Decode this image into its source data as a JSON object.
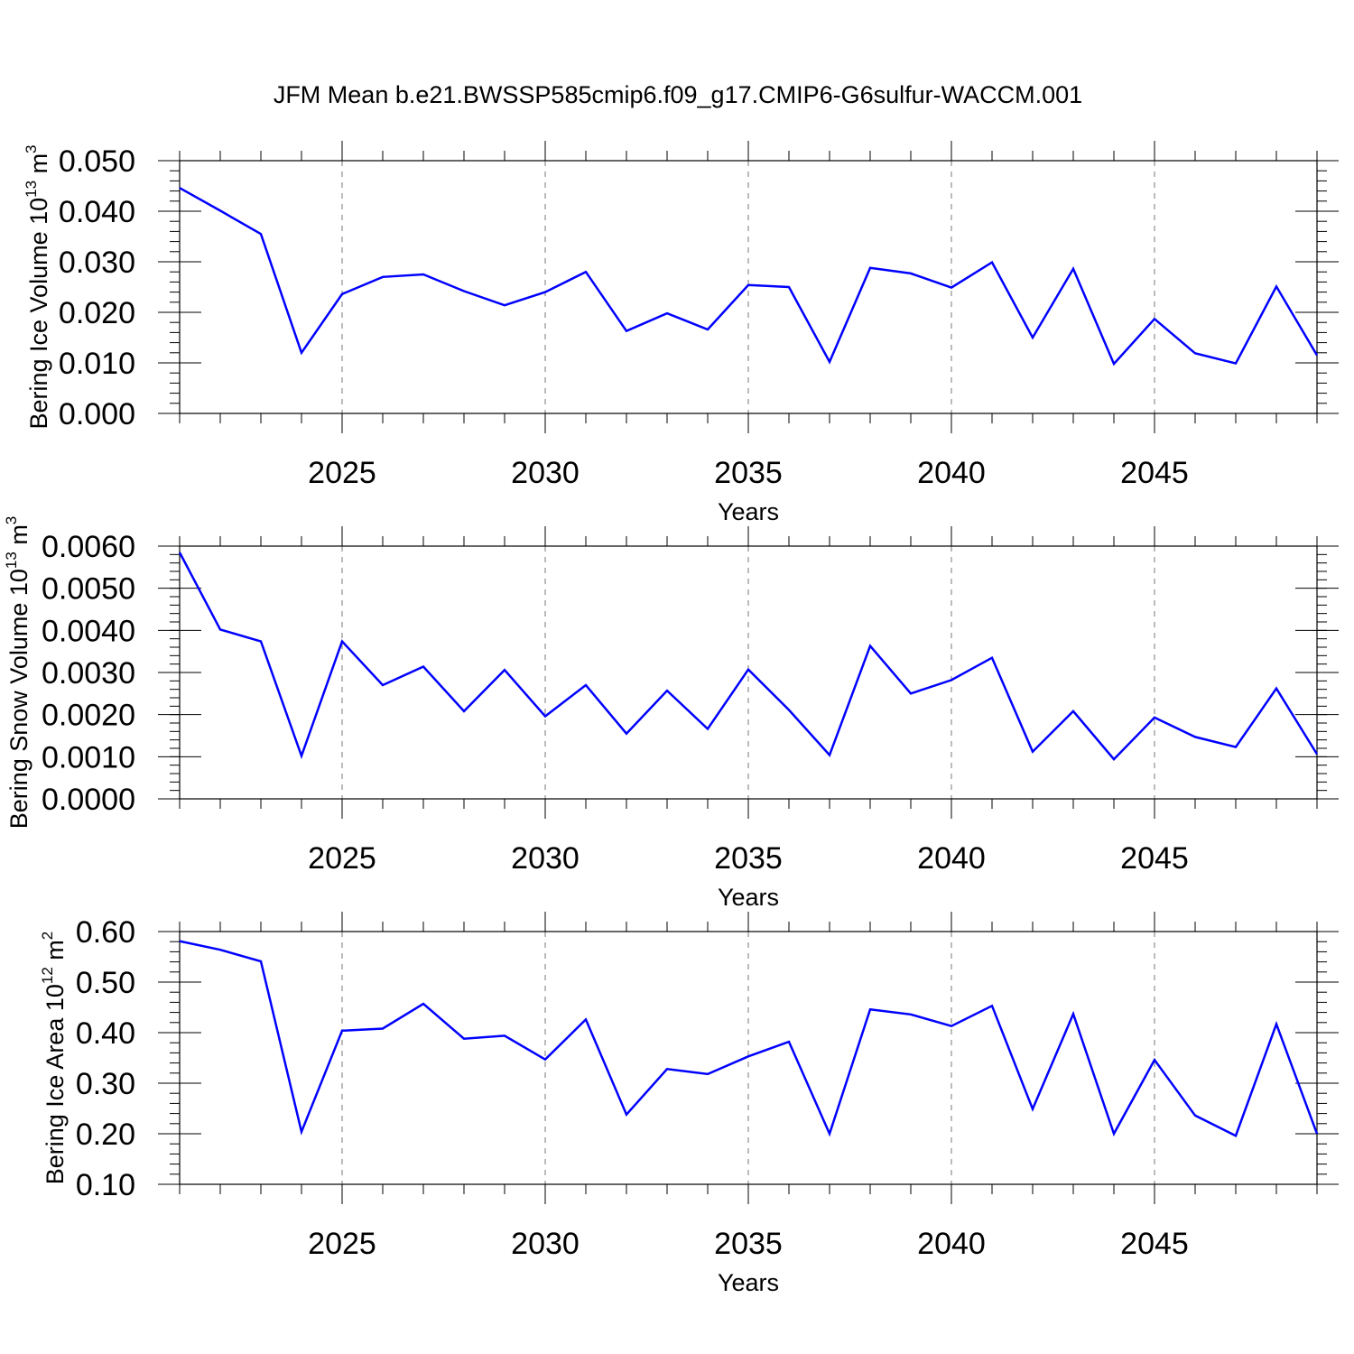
{
  "title": "JFM Mean b.e21.BWSSP585cmip6.f09_g17.CMIP6-G6sulfur-WACCM.001",
  "colors": {
    "line": "#0000ff",
    "axis": "#000000",
    "grid": "#777777",
    "background": "#ffffff"
  },
  "chart_data": [
    {
      "type": "line",
      "title": "JFM Mean b.e21.BWSSP585cmip6.f09_g17.CMIP6-G6sulfur-WACCM.001",
      "xlabel": "Years",
      "ylabel": {
        "text": "Bering Ice Volume 10",
        "sup": "13",
        "unit": " m",
        "unit_sup": "3"
      },
      "xlim": [
        2021,
        2049
      ],
      "ylim": [
        0.0,
        0.05
      ],
      "x_ticks": [
        2025,
        2030,
        2035,
        2040,
        2045
      ],
      "y_ticks": [
        "0.000",
        "0.010",
        "0.020",
        "0.030",
        "0.040",
        "0.050"
      ],
      "y_minor_step": 0.002,
      "grid": "vertical dashed at major x ticks",
      "x": [
        2021,
        2022,
        2023,
        2024,
        2025,
        2026,
        2027,
        2028,
        2029,
        2030,
        2031,
        2032,
        2033,
        2034,
        2035,
        2036,
        2037,
        2038,
        2039,
        2040,
        2041,
        2042,
        2043,
        2044,
        2045,
        2046,
        2047,
        2048,
        2049
      ],
      "series": [
        {
          "name": "Bering Ice Volume",
          "values": [
            0.0446,
            0.0401,
            0.0355,
            0.012,
            0.0236,
            0.027,
            0.0275,
            0.0242,
            0.0214,
            0.024,
            0.028,
            0.0163,
            0.0198,
            0.0166,
            0.0254,
            0.025,
            0.0102,
            0.0288,
            0.0277,
            0.0249,
            0.0299,
            0.015,
            0.0286,
            0.0098,
            0.0187,
            0.0119,
            0.0099,
            0.0251,
            0.0115
          ]
        }
      ]
    },
    {
      "type": "line",
      "xlabel": "Years",
      "ylabel": {
        "text": "Bering Snow Volume 10",
        "sup": "13",
        "unit": " m",
        "unit_sup": "3"
      },
      "xlim": [
        2021,
        2049
      ],
      "ylim": [
        0.0,
        0.006
      ],
      "x_ticks": [
        2025,
        2030,
        2035,
        2040,
        2045
      ],
      "y_ticks": [
        "0.0000",
        "0.0010",
        "0.0020",
        "0.0030",
        "0.0040",
        "0.0050",
        "0.0060"
      ],
      "y_minor_step": 0.0002,
      "grid": "vertical dashed at major x ticks",
      "x": [
        2021,
        2022,
        2023,
        2024,
        2025,
        2026,
        2027,
        2028,
        2029,
        2030,
        2031,
        2032,
        2033,
        2034,
        2035,
        2036,
        2037,
        2038,
        2039,
        2040,
        2041,
        2042,
        2043,
        2044,
        2045,
        2046,
        2047,
        2048,
        2049
      ],
      "series": [
        {
          "name": "Bering Snow Volume",
          "values": [
            0.00585,
            0.00402,
            0.00374,
            0.00102,
            0.00374,
            0.0027,
            0.00314,
            0.00208,
            0.00306,
            0.00196,
            0.0027,
            0.00155,
            0.00257,
            0.00166,
            0.00307,
            0.00211,
            0.00104,
            0.00363,
            0.0025,
            0.00282,
            0.00335,
            0.00112,
            0.00208,
            0.00094,
            0.00193,
            0.00147,
            0.00123,
            0.00262,
            0.00106
          ]
        }
      ]
    },
    {
      "type": "line",
      "xlabel": "Years",
      "ylabel": {
        "text": "Bering Ice Area 10",
        "sup": "12",
        "unit": " m",
        "unit_sup": "2"
      },
      "xlim": [
        2021,
        2049
      ],
      "ylim": [
        0.1,
        0.6
      ],
      "x_ticks": [
        2025,
        2030,
        2035,
        2040,
        2045
      ],
      "y_ticks": [
        "0.10",
        "0.20",
        "0.30",
        "0.40",
        "0.50",
        "0.60"
      ],
      "y_minor_step": 0.02,
      "grid": "vertical dashed at major x ticks",
      "x": [
        2021,
        2022,
        2023,
        2024,
        2025,
        2026,
        2027,
        2028,
        2029,
        2030,
        2031,
        2032,
        2033,
        2034,
        2035,
        2036,
        2037,
        2038,
        2039,
        2040,
        2041,
        2042,
        2043,
        2044,
        2045,
        2046,
        2047,
        2048,
        2049
      ],
      "series": [
        {
          "name": "Bering Ice Area",
          "values": [
            0.581,
            0.564,
            0.541,
            0.204,
            0.404,
            0.408,
            0.457,
            0.388,
            0.394,
            0.347,
            0.426,
            0.238,
            0.328,
            0.318,
            0.353,
            0.382,
            0.2,
            0.446,
            0.436,
            0.413,
            0.453,
            0.249,
            0.437,
            0.2,
            0.346,
            0.236,
            0.196,
            0.417,
            0.2
          ]
        }
      ]
    }
  ]
}
